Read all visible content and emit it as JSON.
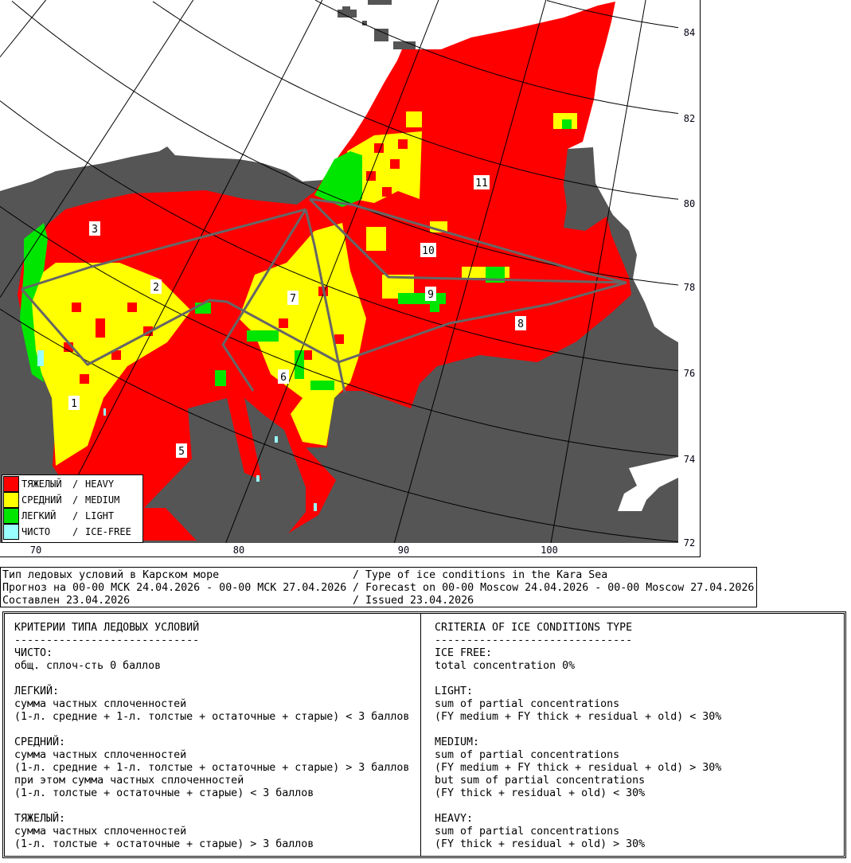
{
  "map": {
    "colors": {
      "heavy": "#ff0000",
      "medium": "#ffff00",
      "light": "#00e600",
      "ice_free": "#99ffff",
      "land": "#555555",
      "sea": "#ffffff",
      "region_border": "#666666"
    },
    "latitude_labels": [
      "84",
      "82",
      "80",
      "78",
      "76",
      "74",
      "72"
    ],
    "longitude_labels": [
      "70",
      "80",
      "90",
      "100"
    ],
    "region_numbers": [
      "1",
      "2",
      "3",
      "5",
      "6",
      "7",
      "8",
      "9",
      "10",
      "11"
    ]
  },
  "legend": {
    "items": [
      {
        "ru": "ТЯЖЕЛЫЙ",
        "sep": "/",
        "en": "HEAVY",
        "color": "#ff0000"
      },
      {
        "ru": "СРЕДНИЙ",
        "sep": "/",
        "en": "MEDIUM",
        "color": "#ffff00"
      },
      {
        "ru": "ЛЕГКИЙ",
        "sep": "/",
        "en": "LIGHT",
        "color": "#00e600"
      },
      {
        "ru": "ЧИСТО",
        "sep": "/",
        "en": "ICE-FREE",
        "color": "#99ffff"
      }
    ]
  },
  "header": {
    "lines": [
      {
        "ru": "Тип ледовых условий в Карском море",
        "en": "/ Type of ice conditions in the Kara Sea"
      },
      {
        "ru": "Прогноз на 00-00 МСК 24.04.2026 - 00-00 МСК 27.04.2026",
        "en": "/ Forecast on 00-00 Moscow 24.04.2026 - 00-00 Moscow 27.04.2026"
      },
      {
        "ru": "Составлен 23.04.2026",
        "en": "/ Issued 23.04.2026"
      }
    ]
  },
  "criteria": {
    "ru": [
      "КРИТЕРИИ ТИПА ЛЕДОВЫХ УСЛОВИЙ",
      "-----------------------------",
      "ЧИСТО:",
      "общ. сплоч-сть 0 баллов",
      "",
      "ЛЕГКИЙ:",
      "сумма частных сплоченностей",
      "(1-л. средние + 1-л. толстые + остаточные + старые) < 3 баллов",
      "",
      "СРЕДНИЙ:",
      "сумма частных сплоченностей",
      "(1-л. средние + 1-л. толстые + остаточные + старые) > 3 баллов",
      "при этом сумма частных сплоченностей",
      "(1-л. толстые + остаточные + старые) < 3 баллов",
      "",
      "ТЯЖЕЛЫЙ:",
      "сумма частных сплоченностей",
      "(1-л. толстые + остаточные + старые) > 3 баллов"
    ],
    "en": [
      "CRITERIA OF ICE CONDITIONS TYPE",
      "-------------------------------",
      "ICE FREE:",
      "total concentration 0%",
      "",
      "LIGHT:",
      "sum of partial concentrations",
      "(FY medium + FY thick + residual + old) < 30%",
      "",
      "MEDIUM:",
      "sum of partial concentrations",
      "(FY medium + FY thick + residual + old) > 30%",
      "but sum of partial concentrations",
      "(FY thick + residual + old) < 30%",
      "",
      "HEAVY:",
      "sum of partial concentrations",
      "(FY thick + residual + old) > 30%"
    ]
  }
}
